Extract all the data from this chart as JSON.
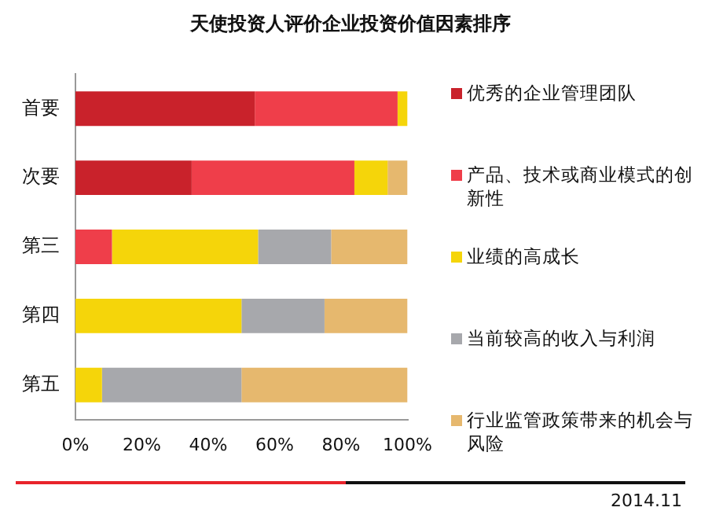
{
  "chart_data": {
    "type": "bar",
    "orientation": "horizontal",
    "stacked": true,
    "title": "天使投资人评价企业投资价值因素排序",
    "categories": [
      "首要",
      "次要",
      "第三",
      "第四",
      "第五"
    ],
    "series": [
      {
        "name": "优秀的企业管理团队",
        "color": "#c9222b",
        "values": [
          54,
          35,
          0,
          0,
          0
        ]
      },
      {
        "name": "产品、技术或商业模式的创新性",
        "color": "#ef3e4a",
        "values": [
          43,
          49,
          11,
          0,
          0
        ]
      },
      {
        "name": "业绩的高成长",
        "color": "#f5d50a",
        "values": [
          3,
          10,
          44,
          50,
          8
        ]
      },
      {
        "name": "当前较高的收入与利润",
        "color": "#a7a8ac",
        "values": [
          0,
          0,
          22,
          25,
          42
        ]
      },
      {
        "name": "行业监管政策带来的机会与风险",
        "color": "#e6b86e",
        "values": [
          0,
          6,
          23,
          25,
          50
        ]
      }
    ],
    "xlim": [
      0,
      100
    ],
    "xticks": [
      {
        "value": 0,
        "label": "0%"
      },
      {
        "value": 20,
        "label": "20%"
      },
      {
        "value": 40,
        "label": "40%"
      },
      {
        "value": 60,
        "label": "60%"
      },
      {
        "value": 80,
        "label": "80%"
      },
      {
        "value": 100,
        "label": "100%"
      }
    ],
    "grid": false,
    "legend": "right",
    "annotations": [
      "2014.11"
    ]
  }
}
